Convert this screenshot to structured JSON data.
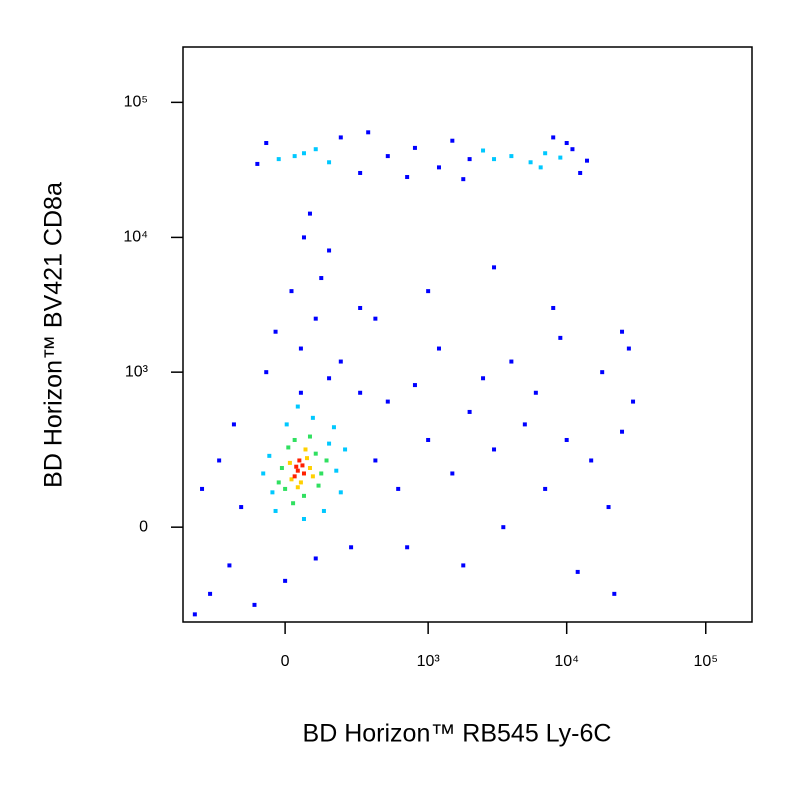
{
  "chart_data": {
    "type": "scatter",
    "x_label": "BD Horizon™ RB545 Ly-6C",
    "y_label": "BD Horizon™  BV421 CD8a",
    "xscale": {
      "type": "arcsinh",
      "cofactor": 189
    },
    "yscale": {
      "type": "arcsinh",
      "cofactor": 143
    },
    "xlim": [
      -495,
      215000
    ],
    "ylim": [
      -346,
      257000
    ],
    "xticks": [
      0,
      {
        "value": 1000,
        "label": "10³"
      },
      {
        "value": 10000,
        "label": "10⁴"
      },
      {
        "value": 100000,
        "label": "10⁵"
      }
    ],
    "yticks": [
      0,
      {
        "value": 1000,
        "label": "10³"
      },
      {
        "value": 10000,
        "label": "10⁴"
      },
      {
        "value": 100000,
        "label": "10⁵"
      }
    ],
    "series": [
      {
        "color": "#0000ff",
        "x": [
          -90,
          -60,
          200,
          300,
          500,
          800,
          1200,
          1500,
          2000,
          11000,
          14000,
          12500,
          700,
          350,
          1800,
          8000,
          10000,
          50,
          100,
          20,
          150,
          80,
          200,
          -30,
          120,
          300,
          60,
          400,
          600,
          1000,
          1500,
          2000,
          3000,
          5000,
          7000,
          10000,
          15000,
          20000,
          25000,
          800,
          1200,
          2500,
          4000,
          6000,
          9000,
          500,
          3500,
          30000,
          18000,
          700,
          1800,
          12000,
          22000,
          400,
          1000,
          3000,
          8000,
          25000,
          28000,
          -150,
          -200,
          -300,
          -100,
          0,
          100,
          250,
          -250,
          -180,
          50,
          150,
          -60,
          300,
          -350,
          -400
        ],
        "y": [
          35000,
          50000,
          55000,
          30000,
          40000,
          46000,
          33000,
          52000,
          38000,
          45000,
          37000,
          30000,
          28000,
          60000,
          27000,
          55000,
          50000,
          1500,
          2500,
          4000,
          8000,
          15000,
          1200,
          2000,
          5000,
          3000,
          10000,
          200,
          100,
          300,
          150,
          500,
          250,
          400,
          100,
          300,
          200,
          50,
          350,
          800,
          1500,
          900,
          1200,
          700,
          1800,
          600,
          0,
          600,
          1000,
          -50,
          -100,
          -120,
          -200,
          2500,
          4000,
          6000,
          3000,
          2000,
          1500,
          50,
          -100,
          -200,
          -250,
          -150,
          -80,
          -50,
          200,
          400,
          700,
          900,
          1000,
          700,
          100,
          -300
        ]
      },
      {
        "color": "#00c8ff",
        "x": [
          -40,
          150,
          180,
          -50,
          5,
          90,
          200,
          -30,
          60,
          130,
          220,
          -70,
          40,
          170,
          30,
          60,
          -20,
          100,
          4000,
          5500,
          7000,
          3000,
          6500,
          2500,
          150,
          9000
        ],
        "y": [
          90,
          280,
          160,
          220,
          400,
          450,
          90,
          40,
          20,
          40,
          250,
          150,
          550,
          380,
          40000,
          42000,
          38000,
          45000,
          40000,
          36000,
          42000,
          38000,
          33000,
          44000,
          36000,
          39000
        ]
      },
      {
        "color": "#30e060",
        "x": [
          0,
          100,
          -10,
          120,
          30,
          60,
          10,
          110,
          80,
          -20,
          140,
          25
        ],
        "y": [
          100,
          230,
          170,
          150,
          300,
          80,
          260,
          110,
          320,
          120,
          200,
          60
        ]
      },
      {
        "color": "#ffd000",
        "x": [
          20,
          70,
          50,
          80,
          15,
          65,
          40,
          90
        ],
        "y": [
          130,
          210,
          120,
          170,
          190,
          250,
          105,
          140
        ]
      },
      {
        "color": "#ff2000",
        "x": [
          40,
          55,
          30,
          45,
          60,
          35
        ],
        "y": [
          160,
          180,
          140,
          200,
          150,
          175
        ]
      }
    ]
  }
}
